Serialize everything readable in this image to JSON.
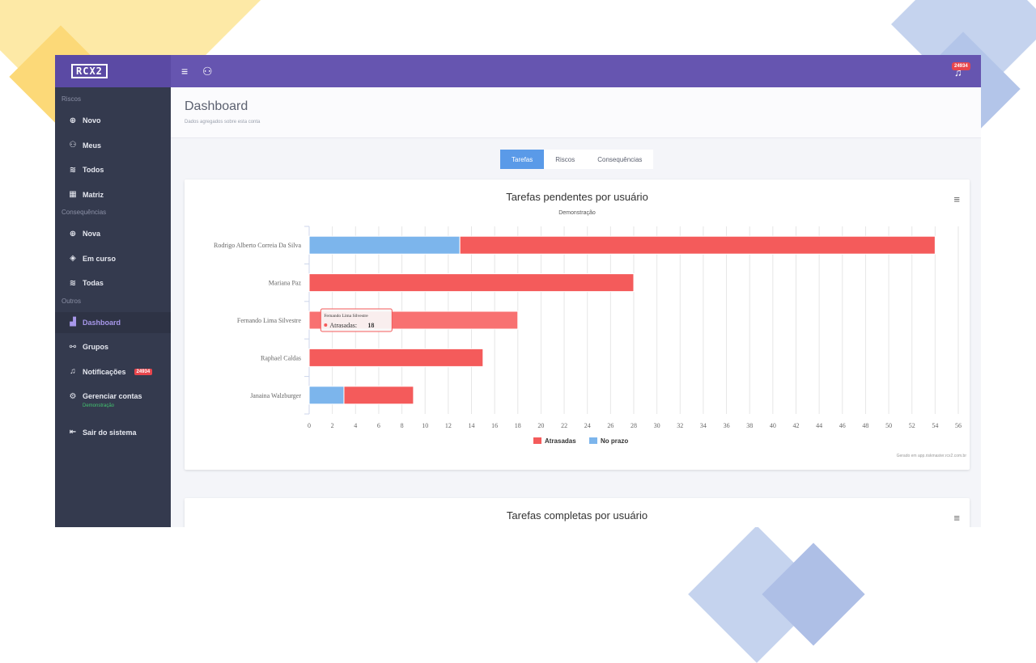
{
  "app": {
    "logo": "RCX2",
    "notifications_badge": "24934"
  },
  "icons": {
    "menu": "menu-icon",
    "user": "user-icon",
    "bell": "bell-icon"
  },
  "sidebar": {
    "sections": [
      {
        "title": "Riscos",
        "items": [
          {
            "label": "Novo",
            "icon": "plus-circle-icon"
          },
          {
            "label": "Meus",
            "icon": "user-icon"
          },
          {
            "label": "Todos",
            "icon": "layers-icon"
          },
          {
            "label": "Matriz",
            "icon": "grid-icon"
          }
        ]
      },
      {
        "title": "Consequências",
        "items": [
          {
            "label": "Nova",
            "icon": "plus-circle-icon"
          },
          {
            "label": "Em curso",
            "icon": "flame-icon"
          },
          {
            "label": "Todas",
            "icon": "layers-icon"
          }
        ]
      },
      {
        "title": "Outros",
        "items": [
          {
            "label": "Dashboard",
            "icon": "bar-chart-icon",
            "active": true
          },
          {
            "label": "Grupos",
            "icon": "sitemap-icon"
          },
          {
            "label": "Notificações",
            "icon": "bell-icon",
            "badge": "24934"
          },
          {
            "label": "Gerenciar contas",
            "icon": "settings-icon",
            "sub": "Demonstração"
          },
          {
            "label": "Sair do sistema",
            "icon": "logout-icon"
          }
        ]
      }
    ]
  },
  "header": {
    "title": "Dashboard",
    "subtitle": "Dados agregados sobre esta conta"
  },
  "tabs": [
    {
      "label": "Tarefas",
      "active": true
    },
    {
      "label": "Riscos",
      "active": false
    },
    {
      "label": "Consequências",
      "active": false
    }
  ],
  "chart_data": [
    {
      "type": "bar",
      "orientation": "horizontal",
      "stacked": true,
      "title": "Tarefas pendentes por usuário",
      "subtitle": "Demonstração",
      "categories": [
        "Rodrigo Alberto Correia Da Silva",
        "Mariana Paz",
        "Fernando Lima Silvestre",
        "Raphael Caldas",
        "Janaina Walzburger"
      ],
      "series": [
        {
          "name": "No prazo",
          "color": "#7cb5ec",
          "values": [
            13,
            0,
            0,
            0,
            3
          ]
        },
        {
          "name": "Atrasadas",
          "color": "#f45b5b",
          "values": [
            41,
            28,
            18,
            15,
            6
          ]
        }
      ],
      "xlim": [
        0,
        56
      ],
      "xticks": [
        0,
        2,
        4,
        6,
        8,
        10,
        12,
        14,
        16,
        18,
        20,
        22,
        24,
        26,
        28,
        30,
        32,
        34,
        36,
        38,
        40,
        42,
        44,
        46,
        48,
        50,
        52,
        54,
        56
      ],
      "grid": true,
      "legend": [
        "Atrasadas",
        "No prazo"
      ],
      "legend_position": "bottom-center",
      "tooltip": {
        "category": "Fernando Lima Silvestre",
        "series": "Atrasadas",
        "value": "18"
      },
      "credit": "Gerado em app.riskmaster.rcx2.com.br"
    },
    {
      "type": "bar",
      "title": "Tarefas completas por usuário"
    }
  ]
}
